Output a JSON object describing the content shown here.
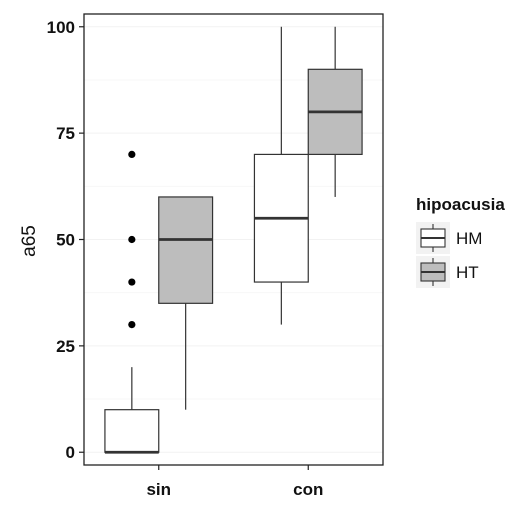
{
  "chart_data": {
    "type": "boxplot",
    "ylabel": "a65",
    "ylim": [
      -3,
      103
    ],
    "yticks": [
      0,
      25,
      50,
      75,
      100
    ],
    "categories": [
      "sin",
      "con"
    ],
    "legend": {
      "title": "hipoacusia",
      "position": "right"
    },
    "grid": true,
    "series": [
      {
        "name": "HM",
        "fill": "#ffffff",
        "boxes": [
          {
            "category": "sin",
            "min": 0,
            "q1": 0,
            "median": 0,
            "q3": 10,
            "max": 20,
            "outliers": [
              30,
              40,
              50,
              70
            ]
          },
          {
            "category": "con",
            "min": 30,
            "q1": 40,
            "median": 55,
            "q3": 70,
            "max": 100,
            "outliers": []
          }
        ]
      },
      {
        "name": "HT",
        "fill": "#bdbdbd",
        "boxes": [
          {
            "category": "sin",
            "min": 10,
            "q1": 35,
            "median": 50,
            "q3": 60,
            "max": 60,
            "outliers": []
          },
          {
            "category": "con",
            "min": 60,
            "q1": 70,
            "median": 80,
            "q3": 90,
            "max": 100,
            "outliers": []
          }
        ]
      }
    ]
  }
}
